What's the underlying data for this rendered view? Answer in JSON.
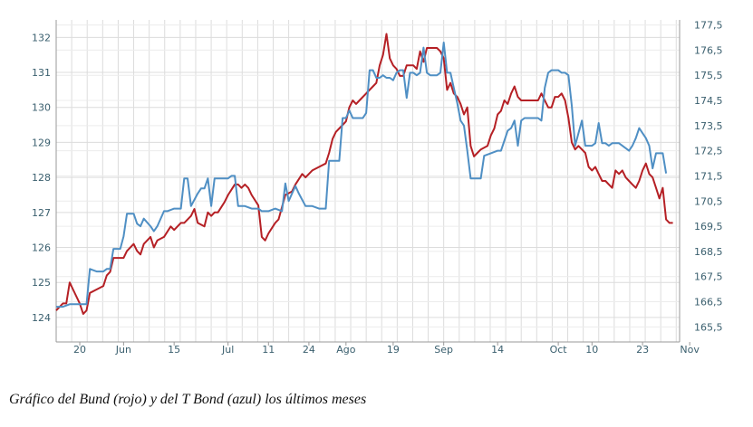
{
  "caption": "Gráfico del Bund (rojo) y del T Bond (azul) los últimos meses",
  "chart_data": {
    "type": "line",
    "title": "",
    "xlabel": "",
    "ylabel": "",
    "grid": true,
    "x_tick_labels": [
      "20",
      "Jun",
      "15",
      "Jul",
      "11",
      "24",
      "Ago",
      "19",
      "Sep",
      "14",
      "Oct",
      "10",
      "23",
      "Nov"
    ],
    "x_tick_index": [
      7,
      20,
      35,
      51,
      63,
      75,
      86,
      100,
      115,
      131,
      149,
      159,
      174,
      188
    ],
    "y_left": {
      "ticks": [
        "124",
        "125",
        "126",
        "127",
        "128",
        "129",
        "130",
        "131",
        "132"
      ],
      "ylim": [
        123.3,
        132.5
      ]
    },
    "y_right": {
      "ticks": [
        "165,5",
        "166,5",
        "167,5",
        "168,5",
        "169,5",
        "170,5",
        "171,5",
        "172,5",
        "173,5",
        "174,5",
        "175,5",
        "176,5",
        "177,5"
      ],
      "ylim": [
        164.9,
        177.7
      ]
    },
    "series": [
      {
        "color": "#b52025",
        "axis": "left",
        "points": [
          [
            0,
            124.2
          ],
          [
            2,
            124.4
          ],
          [
            3,
            124.4
          ],
          [
            4,
            125.0
          ],
          [
            5,
            124.8
          ],
          [
            7,
            124.4
          ],
          [
            8,
            124.1
          ],
          [
            9,
            124.2
          ],
          [
            10,
            124.7
          ],
          [
            12,
            124.8
          ],
          [
            14,
            124.9
          ],
          [
            15,
            125.2
          ],
          [
            16,
            125.3
          ],
          [
            17,
            125.7
          ],
          [
            19,
            125.7
          ],
          [
            20,
            125.7
          ],
          [
            21,
            125.9
          ],
          [
            23,
            126.1
          ],
          [
            24,
            125.9
          ],
          [
            25,
            125.8
          ],
          [
            26,
            126.1
          ],
          [
            28,
            126.3
          ],
          [
            29,
            126.0
          ],
          [
            30,
            126.2
          ],
          [
            32,
            126.3
          ],
          [
            34,
            126.6
          ],
          [
            35,
            126.5
          ],
          [
            37,
            126.7
          ],
          [
            38,
            126.7
          ],
          [
            40,
            126.9
          ],
          [
            41,
            127.1
          ],
          [
            42,
            126.7
          ],
          [
            44,
            126.6
          ],
          [
            45,
            127.0
          ],
          [
            46,
            126.9
          ],
          [
            47,
            127.0
          ],
          [
            48,
            127.0
          ],
          [
            50,
            127.3
          ],
          [
            51,
            127.5
          ],
          [
            53,
            127.8
          ],
          [
            54,
            127.8
          ],
          [
            55,
            127.7
          ],
          [
            56,
            127.8
          ],
          [
            57,
            127.7
          ],
          [
            58,
            127.5
          ],
          [
            60,
            127.2
          ],
          [
            61,
            126.3
          ],
          [
            62,
            126.2
          ],
          [
            63,
            126.4
          ],
          [
            65,
            126.7
          ],
          [
            66,
            126.8
          ],
          [
            68,
            127.5
          ],
          [
            70,
            127.6
          ],
          [
            71,
            127.8
          ],
          [
            73,
            128.1
          ],
          [
            74,
            128.0
          ],
          [
            76,
            128.2
          ],
          [
            78,
            128.3
          ],
          [
            80,
            128.4
          ],
          [
            81,
            128.7
          ],
          [
            82,
            129.1
          ],
          [
            83,
            129.3
          ],
          [
            84,
            129.4
          ],
          [
            86,
            129.6
          ],
          [
            87,
            130.0
          ],
          [
            88,
            130.2
          ],
          [
            89,
            130.1
          ],
          [
            90,
            130.2
          ],
          [
            92,
            130.4
          ],
          [
            94,
            130.6
          ],
          [
            95,
            130.7
          ],
          [
            96,
            131.2
          ],
          [
            97,
            131.5
          ],
          [
            98,
            132.1
          ],
          [
            99,
            131.4
          ],
          [
            100,
            131.2
          ],
          [
            101,
            131.1
          ],
          [
            102,
            130.9
          ],
          [
            103,
            130.9
          ],
          [
            104,
            131.2
          ],
          [
            106,
            131.2
          ],
          [
            107,
            131.1
          ],
          [
            108,
            131.6
          ],
          [
            109,
            131.3
          ],
          [
            110,
            131.7
          ],
          [
            111,
            131.7
          ],
          [
            113,
            131.7
          ],
          [
            114,
            131.6
          ],
          [
            115,
            131.4
          ],
          [
            116,
            130.5
          ],
          [
            117,
            130.7
          ],
          [
            118,
            130.4
          ],
          [
            119,
            130.3
          ],
          [
            120,
            130.1
          ],
          [
            121,
            129.8
          ],
          [
            122,
            130.0
          ],
          [
            123,
            128.9
          ],
          [
            124,
            128.6
          ],
          [
            125,
            128.7
          ],
          [
            126,
            128.8
          ],
          [
            128,
            128.9
          ],
          [
            129,
            129.2
          ],
          [
            130,
            129.4
          ],
          [
            131,
            129.8
          ],
          [
            132,
            129.9
          ],
          [
            133,
            130.2
          ],
          [
            134,
            130.1
          ],
          [
            135,
            130.4
          ],
          [
            136,
            130.6
          ],
          [
            137,
            130.3
          ],
          [
            138,
            130.2
          ],
          [
            139,
            130.2
          ],
          [
            140,
            130.2
          ],
          [
            141,
            130.2
          ],
          [
            142,
            130.2
          ],
          [
            143,
            130.2
          ],
          [
            144,
            130.4
          ],
          [
            145,
            130.2
          ],
          [
            146,
            130.0
          ],
          [
            147,
            130.0
          ],
          [
            148,
            130.3
          ],
          [
            149,
            130.3
          ],
          [
            150,
            130.4
          ],
          [
            151,
            130.2
          ],
          [
            152,
            129.7
          ],
          [
            153,
            129.0
          ],
          [
            154,
            128.8
          ],
          [
            155,
            128.9
          ],
          [
            156,
            128.8
          ],
          [
            157,
            128.7
          ],
          [
            158,
            128.3
          ],
          [
            159,
            128.2
          ],
          [
            160,
            128.3
          ],
          [
            161,
            128.1
          ],
          [
            162,
            127.9
          ],
          [
            163,
            127.9
          ],
          [
            164,
            127.8
          ],
          [
            165,
            127.7
          ],
          [
            166,
            128.2
          ],
          [
            167,
            128.1
          ],
          [
            168,
            128.2
          ],
          [
            169,
            128.0
          ],
          [
            170,
            127.9
          ],
          [
            171,
            127.8
          ],
          [
            172,
            127.7
          ],
          [
            173,
            127.9
          ],
          [
            174,
            128.2
          ],
          [
            175,
            128.4
          ],
          [
            176,
            128.1
          ],
          [
            177,
            128.0
          ],
          [
            178,
            127.7
          ],
          [
            179,
            127.4
          ],
          [
            180,
            127.7
          ],
          [
            181,
            126.8
          ],
          [
            182,
            126.7
          ],
          [
            183,
            126.7
          ]
        ]
      },
      {
        "color": "#4f8fc4",
        "axis": "right",
        "points": [
          [
            0,
            166.3
          ],
          [
            2,
            166.3
          ],
          [
            4,
            166.4
          ],
          [
            6,
            166.4
          ],
          [
            7,
            166.4
          ],
          [
            9,
            166.4
          ],
          [
            10,
            167.8
          ],
          [
            12,
            167.7
          ],
          [
            14,
            167.7
          ],
          [
            15,
            167.8
          ],
          [
            16,
            167.8
          ],
          [
            17,
            168.6
          ],
          [
            19,
            168.6
          ],
          [
            20,
            169.1
          ],
          [
            21,
            170.0
          ],
          [
            23,
            170.0
          ],
          [
            24,
            169.6
          ],
          [
            25,
            169.5
          ],
          [
            26,
            169.8
          ],
          [
            28,
            169.5
          ],
          [
            29,
            169.3
          ],
          [
            30,
            169.5
          ],
          [
            32,
            170.1
          ],
          [
            33,
            170.1
          ],
          [
            35,
            170.2
          ],
          [
            37,
            170.2
          ],
          [
            38,
            171.4
          ],
          [
            39,
            171.4
          ],
          [
            40,
            170.3
          ],
          [
            42,
            170.8
          ],
          [
            43,
            171.0
          ],
          [
            44,
            171.0
          ],
          [
            45,
            171.4
          ],
          [
            46,
            170.3
          ],
          [
            47,
            171.4
          ],
          [
            49,
            171.4
          ],
          [
            51,
            171.4
          ],
          [
            52,
            171.5
          ],
          [
            53,
            171.5
          ],
          [
            54,
            170.3
          ],
          [
            56,
            170.3
          ],
          [
            58,
            170.2
          ],
          [
            59,
            170.2
          ],
          [
            60,
            170.2
          ],
          [
            61,
            170.1
          ],
          [
            63,
            170.1
          ],
          [
            65,
            170.2
          ],
          [
            67,
            170.1
          ],
          [
            68,
            171.2
          ],
          [
            69,
            170.5
          ],
          [
            71,
            171.1
          ],
          [
            72,
            170.8
          ],
          [
            74,
            170.3
          ],
          [
            76,
            170.3
          ],
          [
            78,
            170.2
          ],
          [
            80,
            170.2
          ],
          [
            81,
            172.1
          ],
          [
            83,
            172.1
          ],
          [
            84,
            172.1
          ],
          [
            85,
            173.8
          ],
          [
            86,
            173.8
          ],
          [
            87,
            174.1
          ],
          [
            88,
            173.8
          ],
          [
            89,
            173.8
          ],
          [
            90,
            173.8
          ],
          [
            91,
            173.8
          ],
          [
            92,
            174.0
          ],
          [
            93,
            175.7
          ],
          [
            94,
            175.7
          ],
          [
            95,
            175.4
          ],
          [
            96,
            175.4
          ],
          [
            97,
            175.5
          ],
          [
            98,
            175.4
          ],
          [
            99,
            175.4
          ],
          [
            100,
            175.3
          ],
          [
            101,
            175.6
          ],
          [
            102,
            175.7
          ],
          [
            103,
            175.7
          ],
          [
            104,
            174.6
          ],
          [
            105,
            175.6
          ],
          [
            106,
            175.6
          ],
          [
            107,
            175.5
          ],
          [
            108,
            175.6
          ],
          [
            109,
            176.6
          ],
          [
            110,
            175.6
          ],
          [
            111,
            175.5
          ],
          [
            113,
            175.5
          ],
          [
            114,
            175.6
          ],
          [
            115,
            176.8
          ],
          [
            116,
            175.6
          ],
          [
            117,
            175.6
          ],
          [
            118,
            175.0
          ],
          [
            119,
            174.4
          ],
          [
            120,
            173.7
          ],
          [
            121,
            173.5
          ],
          [
            122,
            172.5
          ],
          [
            123,
            171.4
          ],
          [
            124,
            171.4
          ],
          [
            125,
            171.4
          ],
          [
            126,
            171.4
          ],
          [
            127,
            172.3
          ],
          [
            129,
            172.4
          ],
          [
            131,
            172.5
          ],
          [
            132,
            172.5
          ],
          [
            133,
            172.9
          ],
          [
            134,
            173.3
          ],
          [
            135,
            173.4
          ],
          [
            136,
            173.7
          ],
          [
            137,
            172.7
          ],
          [
            138,
            173.7
          ],
          [
            139,
            173.8
          ],
          [
            141,
            173.8
          ],
          [
            143,
            173.8
          ],
          [
            144,
            173.7
          ],
          [
            145,
            175.0
          ],
          [
            146,
            175.6
          ],
          [
            147,
            175.7
          ],
          [
            148,
            175.7
          ],
          [
            149,
            175.7
          ],
          [
            150,
            175.6
          ],
          [
            151,
            175.6
          ],
          [
            152,
            175.5
          ],
          [
            153,
            174.3
          ],
          [
            154,
            172.7
          ],
          [
            155,
            173.2
          ],
          [
            156,
            173.7
          ],
          [
            157,
            172.7
          ],
          [
            158,
            172.7
          ],
          [
            159,
            172.7
          ],
          [
            160,
            172.8
          ],
          [
            161,
            173.6
          ],
          [
            162,
            172.8
          ],
          [
            163,
            172.8
          ],
          [
            164,
            172.7
          ],
          [
            165,
            172.8
          ],
          [
            166,
            172.8
          ],
          [
            167,
            172.8
          ],
          [
            168,
            172.7
          ],
          [
            169,
            172.6
          ],
          [
            170,
            172.5
          ],
          [
            171,
            172.7
          ],
          [
            172,
            173.0
          ],
          [
            173,
            173.4
          ],
          [
            174,
            173.2
          ],
          [
            175,
            173.0
          ],
          [
            176,
            172.7
          ],
          [
            177,
            171.8
          ],
          [
            178,
            172.4
          ],
          [
            179,
            172.4
          ],
          [
            180,
            172.4
          ],
          [
            181,
            171.6
          ]
        ]
      }
    ]
  }
}
